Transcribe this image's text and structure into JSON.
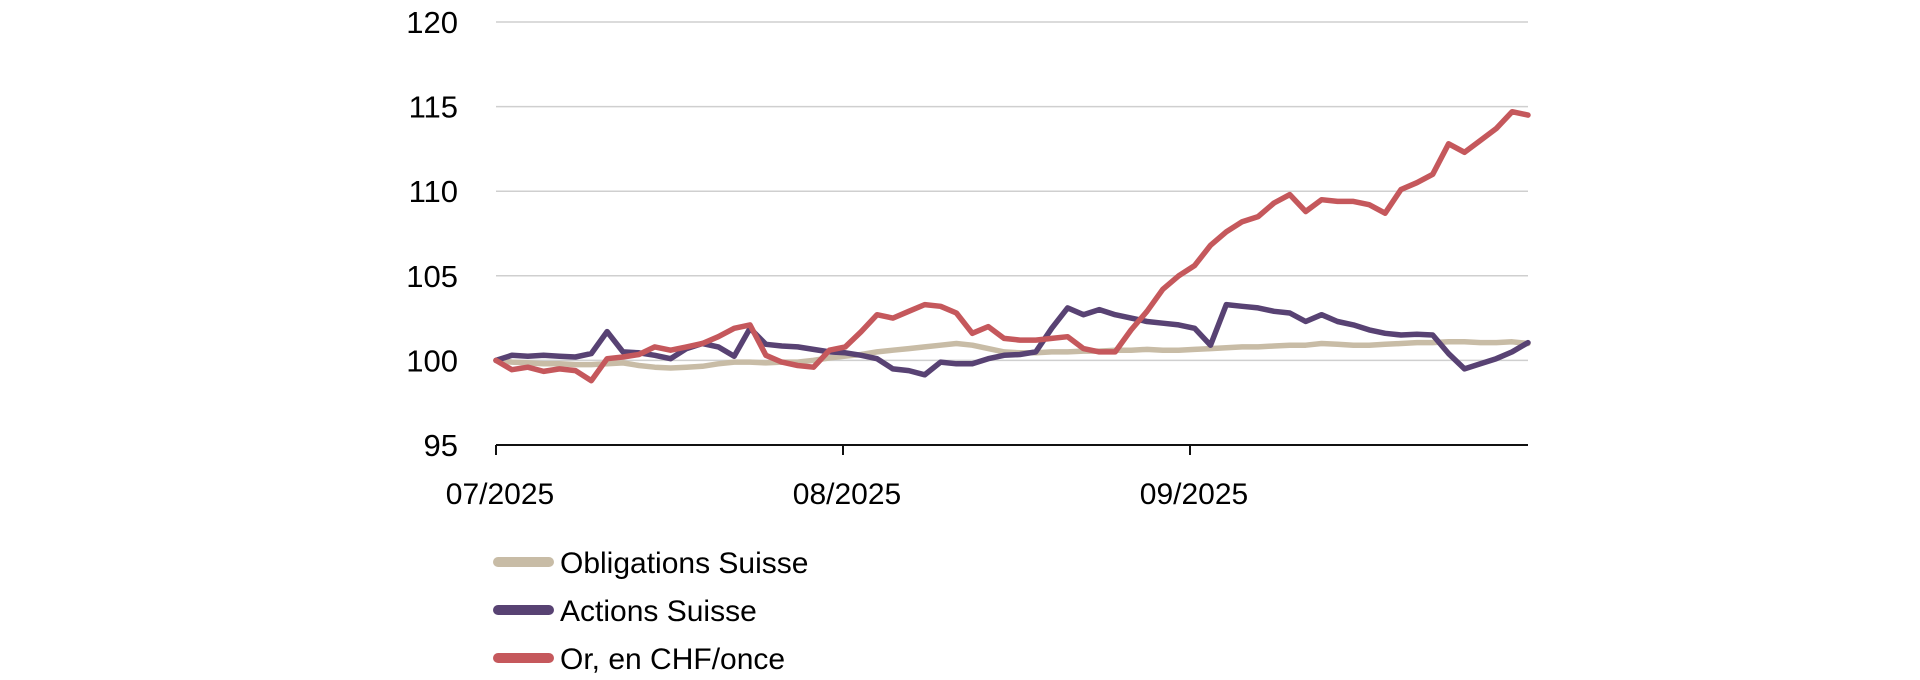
{
  "chart_data": {
    "type": "line",
    "title": "",
    "x_axis": {
      "tick_labels": [
        "07/2025",
        "08/2025",
        "09/2025"
      ]
    },
    "y_axis": {
      "ticks": [
        95,
        100,
        105,
        110,
        115,
        120
      ],
      "range": [
        95,
        120
      ]
    },
    "grid": "horizontal",
    "grid_color": "#cfcfcf",
    "axis_color": "#111111",
    "legend_position": "bottom-left",
    "series": [
      {
        "name": "Obligations Suisse",
        "color": "#c8bca6",
        "values": [
          100,
          99.9,
          99.85,
          99.8,
          99.8,
          99.75,
          99.75,
          99.8,
          99.85,
          99.7,
          99.6,
          99.55,
          99.6,
          99.65,
          99.8,
          99.9,
          99.9,
          99.85,
          99.9,
          99.9,
          100.0,
          100.15,
          100.25,
          100.35,
          100.5,
          100.6,
          100.7,
          100.8,
          100.9,
          101.0,
          100.9,
          100.7,
          100.5,
          100.45,
          100.45,
          100.5,
          100.5,
          100.55,
          100.55,
          100.6,
          100.6,
          100.65,
          100.6,
          100.6,
          100.65,
          100.7,
          100.75,
          100.8,
          100.8,
          100.85,
          100.9,
          100.9,
          101.0,
          100.95,
          100.9,
          100.9,
          100.95,
          101.0,
          101.05,
          101.05,
          101.1,
          101.1,
          101.05,
          101.05,
          101.1,
          101.0
        ]
      },
      {
        "name": "Actions Suisse",
        "color": "#584273",
        "values": [
          100,
          100.3,
          100.25,
          100.3,
          100.25,
          100.2,
          100.4,
          101.7,
          100.5,
          100.45,
          100.3,
          100.1,
          100.7,
          101.0,
          100.8,
          100.25,
          101.9,
          100.95,
          100.85,
          100.8,
          100.65,
          100.5,
          100.45,
          100.3,
          100.1,
          99.5,
          99.4,
          99.15,
          99.9,
          99.8,
          99.8,
          100.1,
          100.3,
          100.35,
          100.5,
          101.9,
          103.1,
          102.7,
          103.0,
          102.7,
          102.5,
          102.3,
          102.2,
          102.1,
          101.9,
          100.9,
          103.3,
          103.2,
          103.1,
          102.9,
          102.8,
          102.3,
          102.7,
          102.3,
          102.1,
          101.8,
          101.6,
          101.5,
          101.55,
          101.5,
          100.4,
          99.5,
          99.8,
          100.1,
          100.5,
          101.05
        ]
      },
      {
        "name": "Or, en CHF/once",
        "color": "#c5585c",
        "values": [
          100,
          99.45,
          99.6,
          99.35,
          99.5,
          99.4,
          98.8,
          100.1,
          100.2,
          100.35,
          100.8,
          100.6,
          100.8,
          101.0,
          101.4,
          101.9,
          102.1,
          100.3,
          99.9,
          99.7,
          99.6,
          100.6,
          100.8,
          101.7,
          102.7,
          102.5,
          102.9,
          103.3,
          103.2,
          102.8,
          101.6,
          102.0,
          101.3,
          101.2,
          101.2,
          101.3,
          101.4,
          100.7,
          100.5,
          100.5,
          101.8,
          102.9,
          104.2,
          105.0,
          105.6,
          106.8,
          107.6,
          108.2,
          108.5,
          109.3,
          109.8,
          108.8,
          109.5,
          109.4,
          109.4,
          109.2,
          108.7,
          110.1,
          110.5,
          111.0,
          112.8,
          112.3,
          113.0,
          113.7,
          114.7,
          114.5
        ]
      }
    ]
  }
}
